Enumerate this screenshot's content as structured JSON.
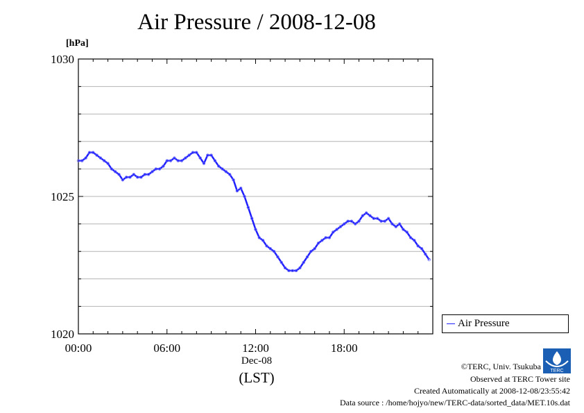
{
  "chart_data": {
    "type": "line",
    "title": "Air Pressure / 2008-12-08",
    "ylabel": "[hPa]",
    "xlabel": "(LST)",
    "x_date_label": "Dec-08",
    "ylim": [
      1020,
      1030
    ],
    "xlim": [
      0,
      24
    ],
    "yticks": [
      "1020",
      "1025",
      "1030"
    ],
    "ytick_values": [
      1020,
      1025,
      1030
    ],
    "xticks": [
      "00:00",
      "06:00",
      "12:00",
      "18:00"
    ],
    "xtick_values": [
      0,
      6,
      12,
      18
    ],
    "grid": true,
    "legend_position": "right",
    "series": [
      {
        "name": "Air Pressure",
        "color": "#2020ff",
        "x": [
          0.0,
          0.25,
          0.5,
          0.75,
          1.0,
          1.25,
          1.5,
          1.75,
          2.0,
          2.25,
          2.5,
          2.75,
          3.0,
          3.25,
          3.5,
          3.75,
          4.0,
          4.25,
          4.5,
          4.75,
          5.0,
          5.25,
          5.5,
          5.75,
          6.0,
          6.25,
          6.5,
          6.75,
          7.0,
          7.25,
          7.5,
          7.75,
          8.0,
          8.25,
          8.5,
          8.75,
          9.0,
          9.25,
          9.5,
          9.75,
          10.0,
          10.25,
          10.5,
          10.75,
          11.0,
          11.25,
          11.5,
          11.75,
          12.0,
          12.25,
          12.5,
          12.75,
          13.0,
          13.25,
          13.5,
          13.75,
          14.0,
          14.25,
          14.5,
          14.75,
          15.0,
          15.25,
          15.5,
          15.75,
          16.0,
          16.25,
          16.5,
          16.75,
          17.0,
          17.25,
          17.5,
          17.75,
          18.0,
          18.25,
          18.5,
          18.75,
          19.0,
          19.25,
          19.5,
          19.75,
          20.0,
          20.25,
          20.5,
          20.75,
          21.0,
          21.25,
          21.5,
          21.75,
          22.0,
          22.25,
          22.5,
          22.75,
          23.0,
          23.25,
          23.5,
          23.75
        ],
        "values": [
          1026.3,
          1026.3,
          1026.4,
          1026.6,
          1026.6,
          1026.5,
          1026.4,
          1026.3,
          1026.2,
          1026.0,
          1025.9,
          1025.8,
          1025.6,
          1025.7,
          1025.7,
          1025.8,
          1025.7,
          1025.7,
          1025.8,
          1025.8,
          1025.9,
          1026.0,
          1026.0,
          1026.1,
          1026.3,
          1026.3,
          1026.4,
          1026.3,
          1026.3,
          1026.4,
          1026.5,
          1026.6,
          1026.6,
          1026.4,
          1026.2,
          1026.5,
          1026.5,
          1026.3,
          1026.1,
          1026.0,
          1025.9,
          1025.8,
          1025.6,
          1025.2,
          1025.3,
          1025.0,
          1024.6,
          1024.2,
          1023.8,
          1023.5,
          1023.4,
          1023.2,
          1023.1,
          1023.0,
          1022.8,
          1022.6,
          1022.4,
          1022.3,
          1022.3,
          1022.3,
          1022.4,
          1022.6,
          1022.8,
          1023.0,
          1023.1,
          1023.3,
          1023.4,
          1023.5,
          1023.5,
          1023.7,
          1023.8,
          1023.9,
          1024.0,
          1024.1,
          1024.1,
          1024.0,
          1024.1,
          1024.3,
          1024.4,
          1024.3,
          1024.2,
          1024.2,
          1024.1,
          1024.1,
          1024.2,
          1024.0,
          1023.9,
          1024.0,
          1023.8,
          1023.7,
          1023.5,
          1023.4,
          1023.2,
          1023.1,
          1022.9,
          1022.7
        ]
      }
    ]
  },
  "footer": {
    "copyright": "©TERC, Univ. Tsukuba",
    "observed": "Observed at TERC Tower site",
    "created": "Created Automatically at 2008-12-08/23:55:42",
    "source": "Data source : /home/hojyo/new/TERC-data/sorted_data/MET.10s.dat"
  },
  "logo": {
    "text": "TERC"
  }
}
